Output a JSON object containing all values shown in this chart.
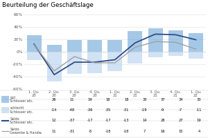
{
  "title": "Beurteilung der Geschäftslage",
  "quarters": [
    "1. Qu.\n20",
    "2. Qu.\n20",
    "3. Qu.\n20",
    "4. Qu.\n20",
    "1. Qu.\n21",
    "2. Qu.\n21",
    "3. Qu.\n21",
    "4. Qu.\n21",
    "1. Qu.\n22"
  ],
  "gut": [
    26,
    11,
    19,
    18,
    18,
    33,
    37,
    34,
    30
  ],
  "schlecht": [
    -14,
    -48,
    -36,
    -35,
    -31,
    -19,
    -9,
    -7,
    -11
  ],
  "saldo_schlosser": [
    12,
    -37,
    -17,
    -17,
    -13,
    14,
    28,
    27,
    19
  ],
  "saldo_gewerbe": [
    11,
    -31,
    -8,
    -18,
    -18,
    7,
    16,
    15,
    4
  ],
  "ylim": [
    -60,
    65
  ],
  "yticks": [
    -60,
    -40,
    -20,
    0,
    20,
    40,
    60
  ],
  "ytick_labels": [
    "-60%",
    "-40%",
    "-20%",
    "0%",
    "20%",
    "40%",
    "60%"
  ],
  "bar_color_gut": "#5b9bd5",
  "bar_alpha_gut": 0.55,
  "bar_color_schlecht": "#bdd7ee",
  "bar_alpha_schlecht": 0.7,
  "line_color_schlosser": "#2e4d87",
  "line_color_gewerbe": "#a0a0a0",
  "table_rows": [
    [
      "gut\nSchlosser etc.",
      "26",
      "11",
      "19",
      "18",
      "18",
      "33",
      "37",
      "34",
      "30"
    ],
    [
      "schlecht\nSchlosser etc.",
      "-14",
      "-48",
      "-36",
      "-35",
      "-31",
      "-19",
      "-9",
      "-7",
      "-11"
    ],
    [
      "Saldo\nSchlosser etc.",
      "12",
      "-37",
      "-17",
      "-17",
      "-13",
      "14",
      "28",
      "27",
      "19"
    ],
    [
      "Saldo\nGewerbe & Handw.",
      "11",
      "-31",
      "-8",
      "-18",
      "-18",
      "7",
      "16",
      "15",
      "4"
    ]
  ]
}
